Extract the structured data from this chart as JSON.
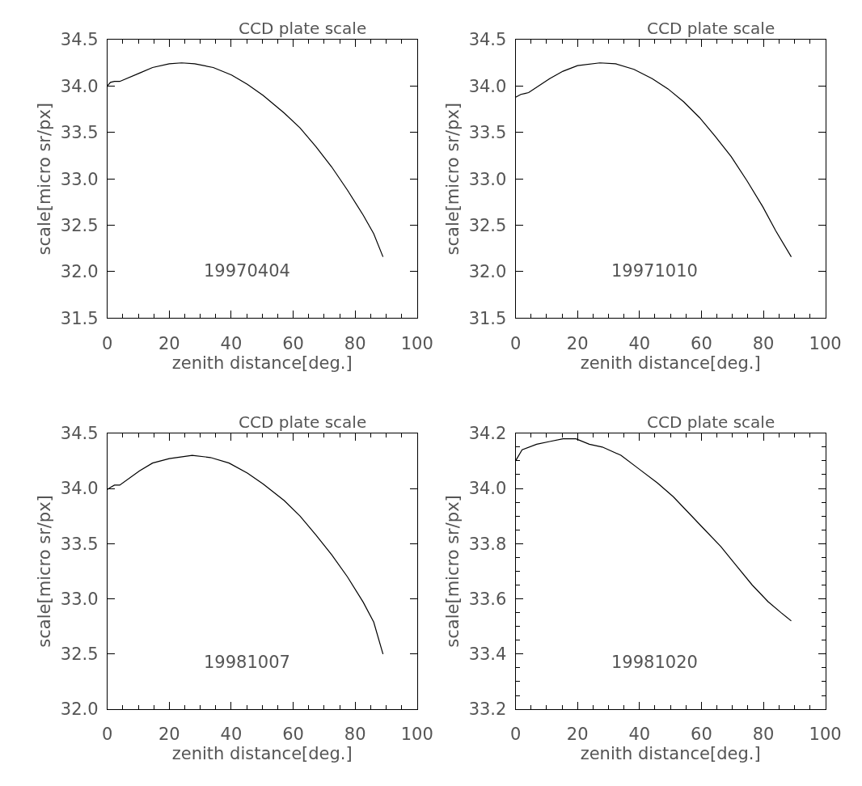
{
  "chart_data": [
    {
      "type": "line",
      "title": "CCD plate scale",
      "xlabel": "zenith distance[deg.]",
      "ylabel": "scale[micro sr/px]",
      "annotations": [
        "19970404"
      ],
      "x": [
        0,
        1.0,
        2.3,
        4.0,
        10.4,
        14.6,
        20,
        24,
        28.2,
        34.2,
        40.1,
        45.2,
        50.3,
        57.1,
        62.2,
        67.3,
        72.4,
        77.5,
        82.6,
        86,
        89
      ],
      "series": [
        {
          "color": "#000000",
          "values": [
            34.0,
            34.04,
            34.05,
            34.05,
            34.14,
            34.2,
            34.24,
            34.25,
            34.24,
            34.2,
            34.12,
            34.02,
            33.9,
            33.71,
            33.55,
            33.35,
            33.13,
            32.88,
            32.61,
            32.41,
            32.16
          ]
        }
      ],
      "xlim": [
        0,
        100
      ],
      "ylim": [
        31.5,
        34.5
      ],
      "xticks": [
        0,
        {
          "value": 5,
          "label": null
        },
        {
          "value": 10,
          "label": null
        },
        {
          "value": 15,
          "label": null
        },
        20,
        {
          "value": 25,
          "label": null
        },
        {
          "value": 30,
          "label": null
        },
        {
          "value": 35,
          "label": null
        },
        40,
        {
          "value": 45,
          "label": null
        },
        {
          "value": 50,
          "label": null
        },
        {
          "value": 55,
          "label": null
        },
        60,
        {
          "value": 65,
          "label": null
        },
        {
          "value": 70,
          "label": null
        },
        {
          "value": 75,
          "label": null
        },
        80,
        {
          "value": 85,
          "label": null
        },
        {
          "value": 90,
          "label": null
        },
        {
          "value": 95,
          "label": null
        },
        100
      ],
      "yticks": [
        31.5,
        {
          "value": 32,
          "label": "32.0"
        },
        32.5,
        {
          "value": 33,
          "label": "33.0"
        },
        33.5,
        {
          "value": 34,
          "label": "34.0"
        },
        34.5
      ]
    },
    {
      "type": "line",
      "title": "CCD plate scale",
      "xlabel": "zenith distance[deg.]",
      "ylabel": "scale[micro sr/px]",
      "annotations": [
        "19971010"
      ],
      "x": [
        0,
        1.7,
        3.0,
        4.2,
        11.0,
        15.3,
        20.0,
        27.2,
        32.3,
        38.2,
        44.1,
        49.2,
        54.3,
        59.4,
        64.4,
        69.6,
        74.7,
        79.8,
        84.0,
        89.0
      ],
      "series": [
        {
          "color": "#000000",
          "values": [
            33.88,
            33.91,
            33.92,
            33.93,
            34.08,
            34.16,
            34.22,
            34.25,
            34.24,
            34.18,
            34.08,
            33.97,
            33.83,
            33.66,
            33.46,
            33.24,
            32.98,
            32.7,
            32.44,
            32.16
          ]
        }
      ],
      "xlim": [
        0,
        100
      ],
      "ylim": [
        31.5,
        34.5
      ],
      "xticks": [
        0,
        {
          "value": 5,
          "label": null
        },
        {
          "value": 10,
          "label": null
        },
        {
          "value": 15,
          "label": null
        },
        20,
        {
          "value": 25,
          "label": null
        },
        {
          "value": 30,
          "label": null
        },
        {
          "value": 35,
          "label": null
        },
        40,
        {
          "value": 45,
          "label": null
        },
        {
          "value": 50,
          "label": null
        },
        {
          "value": 55,
          "label": null
        },
        60,
        {
          "value": 65,
          "label": null
        },
        {
          "value": 70,
          "label": null
        },
        {
          "value": 75,
          "label": null
        },
        80,
        {
          "value": 85,
          "label": null
        },
        {
          "value": 90,
          "label": null
        },
        {
          "value": 95,
          "label": null
        },
        100
      ],
      "yticks": [
        31.5,
        {
          "value": 32,
          "label": "32.0"
        },
        32.5,
        {
          "value": 33,
          "label": "33.0"
        },
        33.5,
        {
          "value": 34,
          "label": "34.0"
        },
        34.5
      ]
    },
    {
      "type": "line",
      "title": "CCD plate scale",
      "xlabel": "zenith distance[deg.]",
      "ylabel": "scale[micro sr/px]",
      "annotations": [
        "19981007"
      ],
      "x": [
        0,
        1.0,
        2.3,
        4.0,
        10.4,
        14.6,
        20,
        27.4,
        33.3,
        39.3,
        45.2,
        50.3,
        57.1,
        62.2,
        67.3,
        72.4,
        77.5,
        82.6,
        86.0,
        89
      ],
      "series": [
        {
          "color": "#000000",
          "values": [
            33.99,
            34.01,
            34.03,
            34.03,
            34.16,
            34.23,
            34.27,
            34.3,
            34.28,
            34.23,
            34.14,
            34.04,
            33.89,
            33.75,
            33.58,
            33.4,
            33.2,
            32.97,
            32.79,
            32.5
          ]
        }
      ],
      "xlim": [
        0,
        100
      ],
      "ylim": [
        32.0,
        34.5
      ],
      "xticks": [
        0,
        {
          "value": 5,
          "label": null
        },
        {
          "value": 10,
          "label": null
        },
        {
          "value": 15,
          "label": null
        },
        20,
        {
          "value": 25,
          "label": null
        },
        {
          "value": 30,
          "label": null
        },
        {
          "value": 35,
          "label": null
        },
        40,
        {
          "value": 45,
          "label": null
        },
        {
          "value": 50,
          "label": null
        },
        {
          "value": 55,
          "label": null
        },
        60,
        {
          "value": 65,
          "label": null
        },
        {
          "value": 70,
          "label": null
        },
        {
          "value": 75,
          "label": null
        },
        80,
        {
          "value": 85,
          "label": null
        },
        {
          "value": 90,
          "label": null
        },
        {
          "value": 95,
          "label": null
        },
        100
      ],
      "yticks": [
        {
          "value": 32,
          "label": "32.0"
        },
        32.5,
        {
          "value": 33,
          "label": "33.0"
        },
        33.5,
        {
          "value": 34,
          "label": "34.0"
        },
        34.5
      ]
    },
    {
      "type": "line",
      "title": "CCD plate scale",
      "xlabel": "zenith distance[deg.]",
      "ylabel": "scale[micro sr/px]",
      "annotations": [
        "19981020"
      ],
      "x": [
        0,
        2.1,
        6.8,
        11.0,
        15.3,
        19.5,
        23.8,
        28.0,
        34.0,
        39.9,
        45.8,
        50.9,
        56.0,
        61.1,
        66.2,
        71.3,
        76.4,
        81.5,
        85.7,
        89
      ],
      "series": [
        {
          "color": "#000000",
          "values": [
            34.1,
            34.14,
            34.16,
            34.17,
            34.18,
            34.18,
            34.16,
            34.15,
            34.12,
            34.07,
            34.02,
            33.97,
            33.91,
            33.85,
            33.79,
            33.72,
            33.65,
            33.59,
            33.55,
            33.52
          ]
        }
      ],
      "xlim": [
        0,
        100
      ],
      "ylim": [
        33.2,
        34.2
      ],
      "xticks": [
        0,
        {
          "value": 5,
          "label": null
        },
        {
          "value": 10,
          "label": null
        },
        {
          "value": 15,
          "label": null
        },
        20,
        {
          "value": 25,
          "label": null
        },
        {
          "value": 30,
          "label": null
        },
        {
          "value": 35,
          "label": null
        },
        40,
        {
          "value": 45,
          "label": null
        },
        {
          "value": 50,
          "label": null
        },
        {
          "value": 55,
          "label": null
        },
        60,
        {
          "value": 65,
          "label": null
        },
        {
          "value": 70,
          "label": null
        },
        {
          "value": 75,
          "label": null
        },
        80,
        {
          "value": 85,
          "label": null
        },
        {
          "value": 90,
          "label": null
        },
        {
          "value": 95,
          "label": null
        },
        100
      ],
      "yticks": [
        33.2,
        {
          "value": 33.25,
          "label": null
        },
        {
          "value": 33.3,
          "label": null
        },
        {
          "value": 33.35,
          "label": null
        },
        33.4,
        {
          "value": 33.45,
          "label": null
        },
        {
          "value": 33.5,
          "label": null
        },
        {
          "value": 33.55,
          "label": null
        },
        33.6,
        {
          "value": 33.65,
          "label": null
        },
        {
          "value": 33.7,
          "label": null
        },
        {
          "value": 33.75,
          "label": null
        },
        33.8,
        {
          "value": 33.85,
          "label": null
        },
        {
          "value": 33.9,
          "label": null
        },
        {
          "value": 33.95,
          "label": null
        },
        {
          "value": 34,
          "label": "34.0"
        },
        {
          "value": 34.05,
          "label": null
        },
        {
          "value": 34.1,
          "label": null
        },
        {
          "value": 34.15,
          "label": null
        },
        34.2
      ]
    }
  ]
}
